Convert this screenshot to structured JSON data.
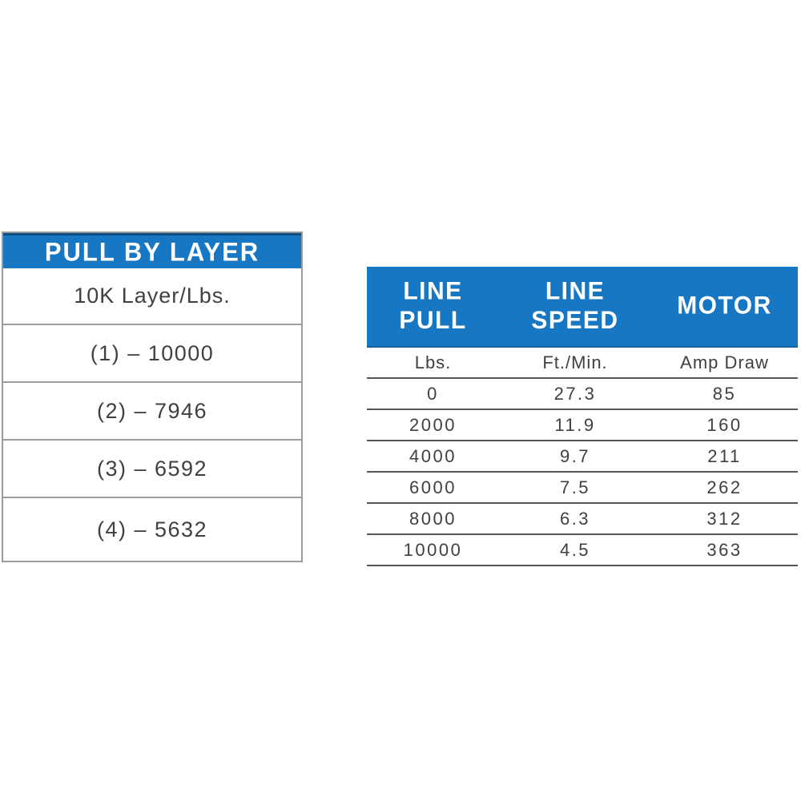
{
  "colors": {
    "header_blue": "#1877c2",
    "header_blue_dark_edge": "#0d4f85",
    "header_text": "#ffffff",
    "body_text": "#3f4042",
    "left_table_border": "#9b9b9b",
    "right_table_rule": "#55565a",
    "background": "#ffffff"
  },
  "left_table": {
    "title": "PULL BY LAYER",
    "subtitle": "10K Layer/Lbs.",
    "rows": [
      "(1) – 10000",
      "(2) – 7946",
      "(3) – 6592",
      "(4) – 5632"
    ]
  },
  "right_table": {
    "headers": [
      "LINE PULL",
      "LINE\nSPEED",
      "MOTOR"
    ],
    "units": [
      "Lbs.",
      "Ft./Min.",
      "Amp Draw"
    ],
    "rows": [
      [
        "0",
        "27.3",
        "85"
      ],
      [
        "2000",
        "11.9",
        "160"
      ],
      [
        "4000",
        "9.7",
        "211"
      ],
      [
        "6000",
        "7.5",
        "262"
      ],
      [
        "8000",
        "6.3",
        "312"
      ],
      [
        "10000",
        "4.5",
        "363"
      ]
    ]
  },
  "chart_data": [
    {
      "type": "table",
      "title": "PULL BY LAYER",
      "columns": [
        "Layer",
        "10K Layer/Lbs."
      ],
      "rows": [
        [
          1,
          10000
        ],
        [
          2,
          7946
        ],
        [
          3,
          6592
        ],
        [
          4,
          5632
        ]
      ]
    },
    {
      "type": "table",
      "title": "LINE PULL / LINE SPEED / MOTOR",
      "columns": [
        "LINE PULL (Lbs.)",
        "LINE SPEED (Ft./Min.)",
        "MOTOR (Amp Draw)"
      ],
      "rows": [
        [
          0,
          27.3,
          85
        ],
        [
          2000,
          11.9,
          160
        ],
        [
          4000,
          9.7,
          211
        ],
        [
          6000,
          7.5,
          262
        ],
        [
          8000,
          6.3,
          312
        ],
        [
          10000,
          4.5,
          363
        ]
      ]
    }
  ]
}
